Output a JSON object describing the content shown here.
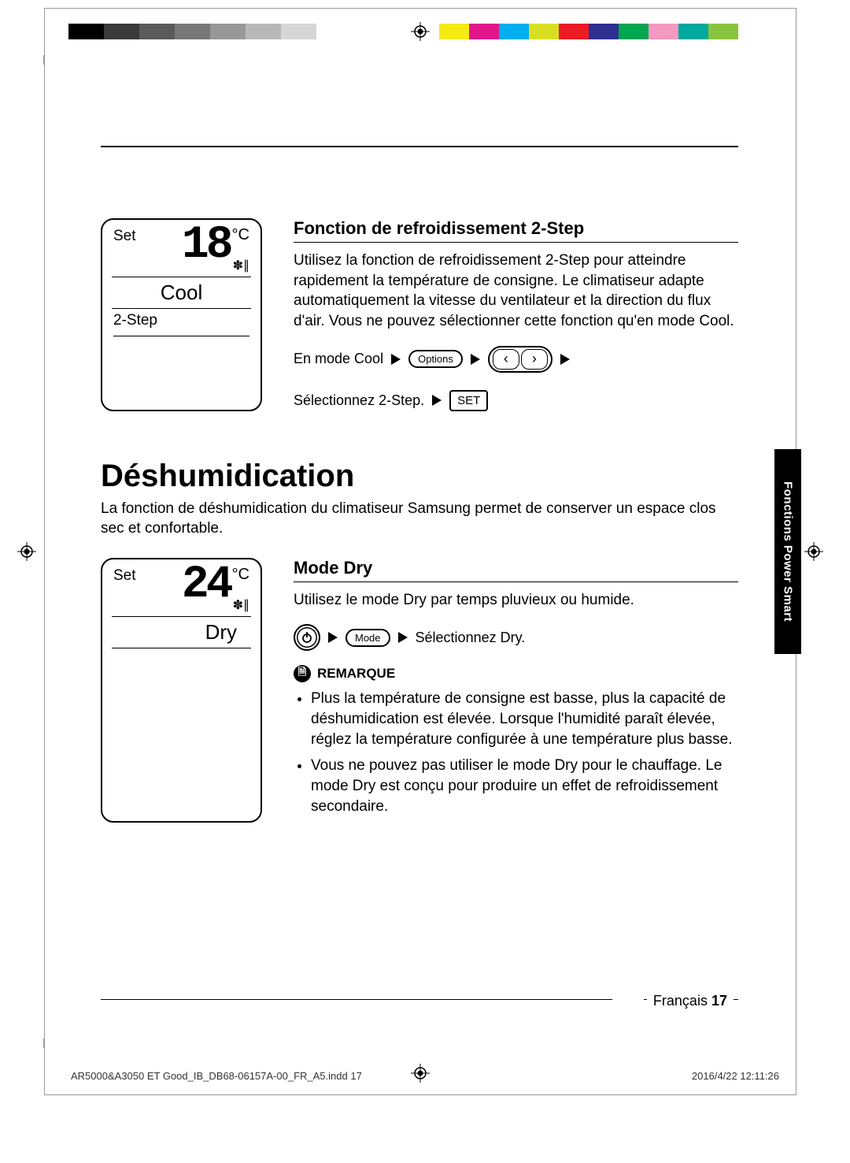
{
  "colorbars": {
    "left": [
      "#000000",
      "#3a3a3a",
      "#5a5a5a",
      "#787878",
      "#989898",
      "#b8b8b8",
      "#d6d6d6",
      "#ffffff"
    ],
    "right": [
      "#f5ea14",
      "#e2158b",
      "#00adee",
      "#d8df23",
      "#ed1c24",
      "#2e3192",
      "#00a650",
      "#f499c1",
      "#00a99d",
      "#8ac43f"
    ]
  },
  "section1": {
    "lcd": {
      "set_label": "Set",
      "temp": "18",
      "unit": "°C",
      "mode": "Cool",
      "sub": "2-Step"
    },
    "heading": "Fonction de refroidissement 2-Step",
    "body": "Utilisez la fonction de refroidissement 2-Step pour atteindre rapidement la température de consigne. Le climatiseur adapte automatiquement la vitesse du ventilateur et la direction du flux d'air. Vous ne pouvez sélectionner cette fonction qu'en mode Cool.",
    "seq1_prefix": "En mode Cool",
    "options_label": "Options",
    "seq2_prefix": "Sélectionnez 2-Step.",
    "set_button": "SET"
  },
  "title": "Déshumidication",
  "lead": "La fonction de déshumidication du climatiseur Samsung permet de conserver un espace clos sec et confortable.",
  "section2": {
    "lcd": {
      "set_label": "Set",
      "temp": "24",
      "unit": "°C",
      "mode": "Dry"
    },
    "heading": "Mode Dry",
    "body": "Utilisez le mode Dry par temps pluvieux ou humide.",
    "mode_label": "Mode",
    "seq_suffix": "Sélectionnez Dry.",
    "note_label": "REMARQUE",
    "notes": [
      "Plus la température de consigne est basse, plus la capacité de déshumidication est élevée. Lorsque l'humidité paraît élevée, réglez la température configurée à une température plus basse.",
      "Vous ne pouvez pas utiliser le mode Dry pour le chauffage. Le mode Dry est conçu pour produire un effet de refroidissement secondaire."
    ]
  },
  "side_tab": "Fonctions Power Smart",
  "footer": {
    "lang": "Français",
    "page": "17",
    "file": "AR5000&A3050 ET Good_IB_DB68-06157A-00_FR_A5.indd   17",
    "timestamp": "2016/4/22   12:11:26"
  }
}
